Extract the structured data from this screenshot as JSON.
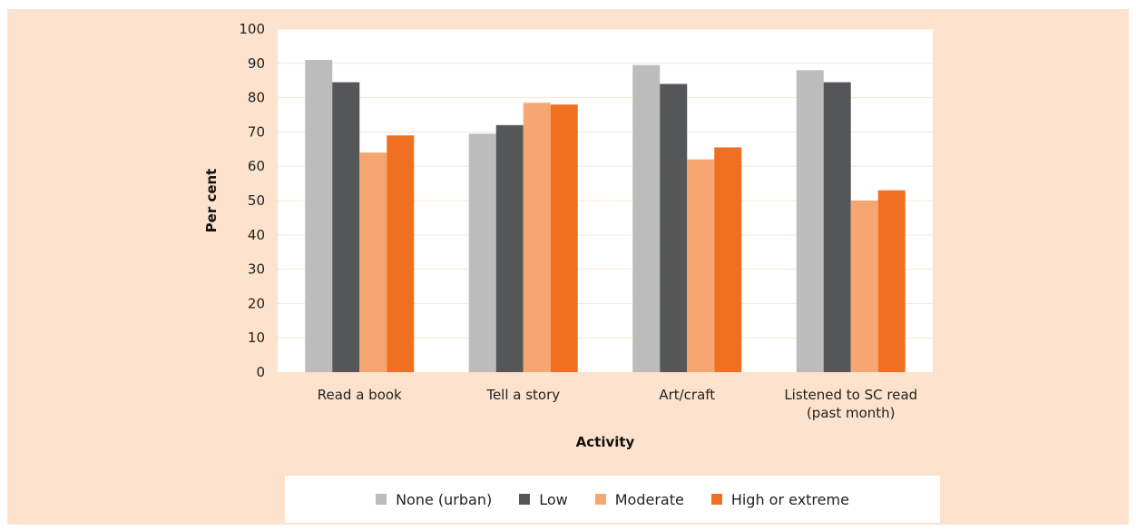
{
  "chart_data": {
    "type": "bar",
    "title": "",
    "xlabel": "Activity",
    "ylabel": "Per cent",
    "ylim": [
      0,
      100
    ],
    "yticks": [
      0,
      10,
      20,
      30,
      40,
      50,
      60,
      70,
      80,
      90,
      100
    ],
    "categories": [
      [
        "Read a book"
      ],
      [
        "Tell a story"
      ],
      [
        "Art/craft"
      ],
      [
        "Listened to SC read",
        "(past month)"
      ]
    ],
    "series": [
      {
        "name": "None (urban)",
        "color": "#bcbcbc",
        "values": [
          91,
          69.5,
          89.5,
          88
        ]
      },
      {
        "name": "Low",
        "color": "#555657",
        "values": [
          84.5,
          72,
          84,
          84.5
        ]
      },
      {
        "name": "Moderate",
        "color": "#f6a671",
        "values": [
          64,
          78.5,
          62,
          50
        ]
      },
      {
        "name": "High or extreme",
        "color": "#f07022",
        "values": [
          69,
          78,
          65.5,
          53
        ]
      }
    ],
    "grid": true,
    "gridline_color": "#fde3cd",
    "plot_background": "#ffffff",
    "frame_background": "#fde3cd",
    "legend_position": "bottom"
  }
}
